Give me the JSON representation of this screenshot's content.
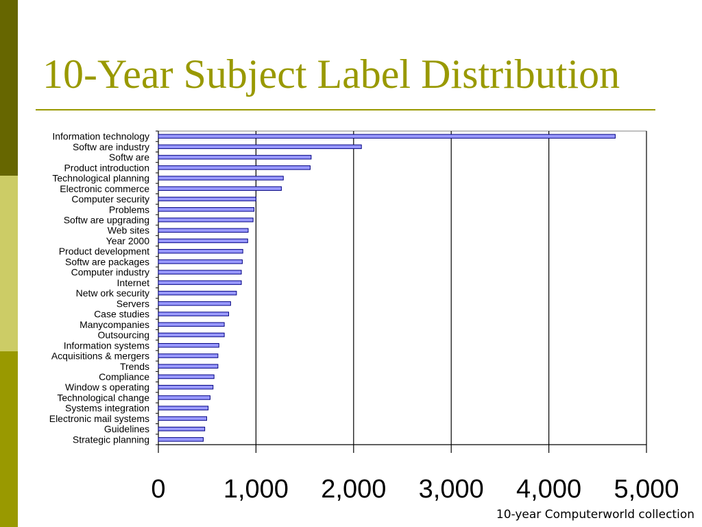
{
  "slide": {
    "title": "10-Year Subject Label Distribution",
    "footer": "10-year Computerworld collection"
  },
  "colors": {
    "title": "#999900",
    "band_dark": "#666600",
    "band_light": "#cccc66",
    "band_mid": "#999900",
    "bar_fill": "#9999ff",
    "bar_stroke": "#000080"
  },
  "chart_data": {
    "type": "bar",
    "orientation": "horizontal",
    "title": "",
    "xlabel": "",
    "ylabel": "",
    "xlim": [
      0,
      5000
    ],
    "grid": true,
    "legend": "none",
    "x_tick_labels": [
      "0",
      "1,000",
      "2,000",
      "3,000",
      "4,000",
      "5,000"
    ],
    "x_ticks": [
      0,
      1000,
      2000,
      3000,
      4000,
      5000
    ],
    "categories": [
      "Information technology",
      "Softw are industry",
      "Softw are",
      "Product introduction",
      "Technological planning",
      "Electronic commerce",
      "Computer security",
      "Problems",
      "Softw are upgrading",
      "Web sites",
      "Year 2000",
      "Product development",
      "Softw are packages",
      "Computer industry",
      "Internet",
      "Netw ork security",
      "Servers",
      "Case studies",
      "Manycompanies",
      "Outsourcing",
      "Information systems",
      "Acquisitions & mergers",
      "Trends",
      "Compliance",
      "Window s operating",
      "Technological change",
      "Systems integration",
      "Electronic mail systems",
      "Guidelines",
      "Strategic planning"
    ],
    "values": [
      4680,
      2080,
      1565,
      1555,
      1280,
      1260,
      1000,
      980,
      970,
      920,
      915,
      865,
      860,
      850,
      850,
      800,
      740,
      720,
      675,
      675,
      620,
      610,
      610,
      570,
      560,
      530,
      510,
      495,
      475,
      460
    ]
  }
}
